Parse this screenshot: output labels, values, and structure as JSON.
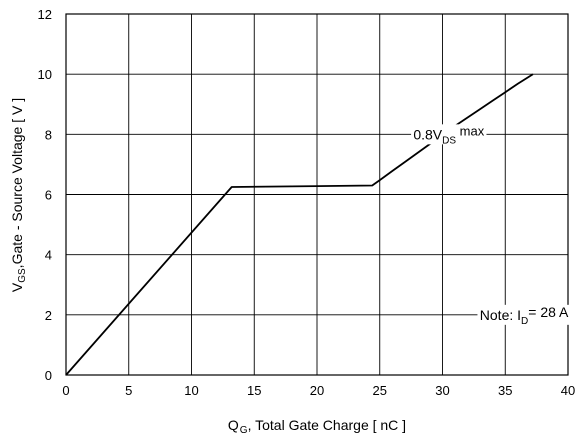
{
  "chart_data": {
    "type": "line",
    "title": "",
    "xlabel": {
      "main": "Q",
      "sub": "G",
      "rest": ", Total Gate Charge [ nC ]"
    },
    "ylabel": {
      "main": "V",
      "sub": "GS",
      "rest": ",Gate - Source Voltage [ V ]"
    },
    "xlim": [
      0,
      40
    ],
    "ylim": [
      0,
      12
    ],
    "xticks": [
      0,
      5,
      10,
      15,
      20,
      25,
      30,
      35,
      40
    ],
    "yticks": [
      0,
      2,
      4,
      6,
      8,
      10,
      12
    ],
    "grid": true,
    "series": [
      {
        "x": [
          0,
          13.2,
          20,
          24.4,
          25,
          26,
          27,
          28,
          29,
          30,
          31,
          32,
          33,
          34,
          35,
          36,
          37.2
        ],
        "y": [
          0,
          6.25,
          6.28,
          6.3,
          6.48,
          6.78,
          7.08,
          7.38,
          7.68,
          7.98,
          8.28,
          8.56,
          8.84,
          9.12,
          9.4,
          9.68,
          10.0
        ]
      }
    ],
    "annotations": [
      {
        "main": "0.8V",
        "sub": "DS",
        "rest": " max",
        "x": 30.5,
        "y": 8
      },
      {
        "main": "Note: I",
        "sub": "D",
        "rest": "=  28  A",
        "x": 36.5,
        "y": 2
      }
    ]
  }
}
